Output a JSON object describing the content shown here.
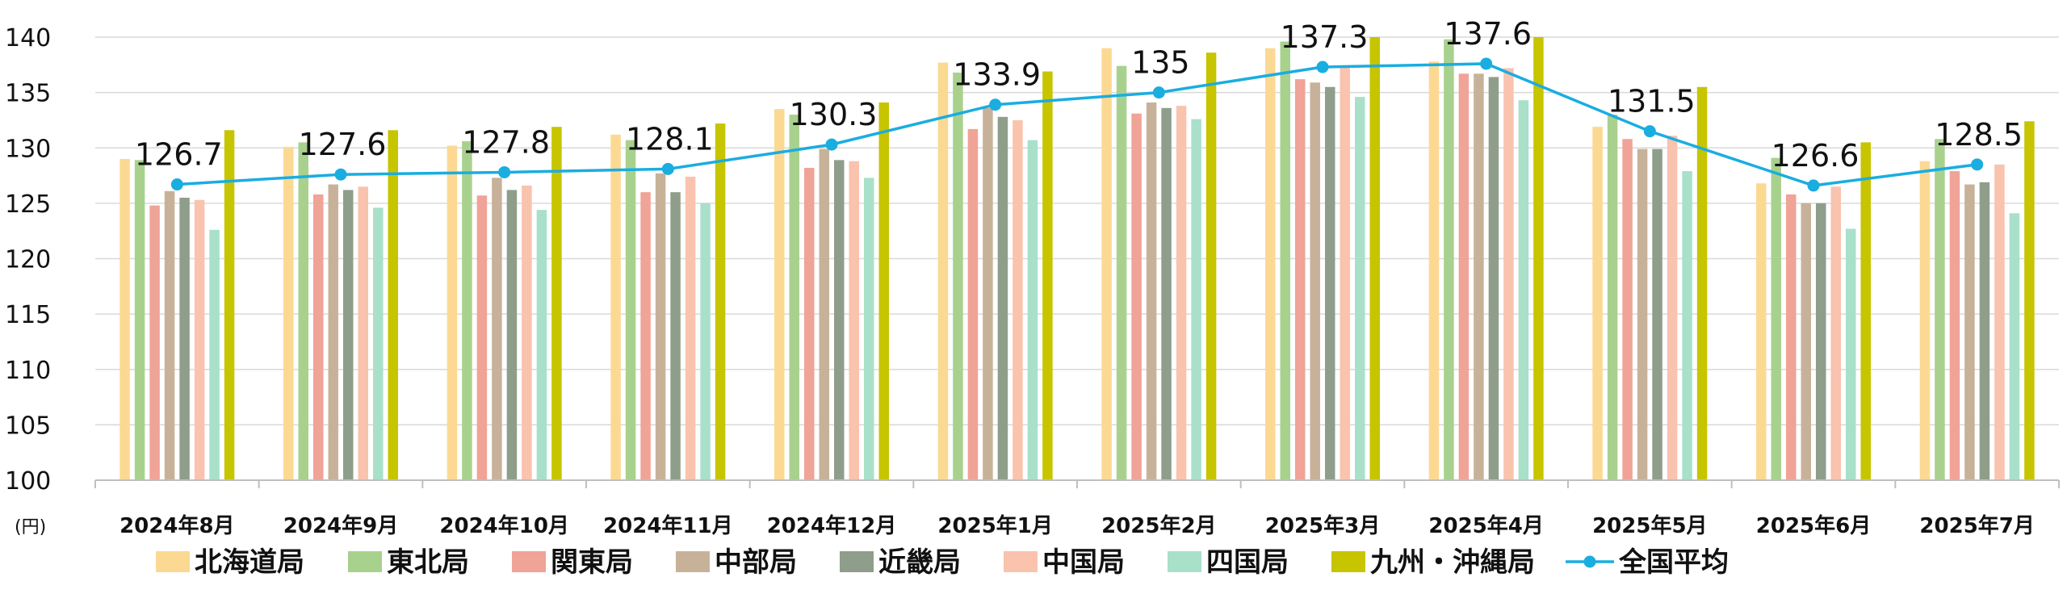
{
  "chart_data": {
    "type": "bar",
    "unit_label": "(円)",
    "ylim": [
      100,
      140
    ],
    "yticks": [
      100,
      105,
      110,
      115,
      120,
      125,
      130,
      135,
      140
    ],
    "grid": true,
    "legend_position": "bottom",
    "categories": [
      "2024年8月",
      "2024年9月",
      "2024年10月",
      "2024年11月",
      "2024年12月",
      "2025年1月",
      "2025年2月",
      "2025年3月",
      "2025年4月",
      "2025年5月",
      "2025年6月",
      "2025年7月"
    ],
    "series": [
      {
        "name": "北海道局",
        "color": "#FCD993",
        "values": [
          129.0,
          130.1,
          130.2,
          131.2,
          133.5,
          137.7,
          139.0,
          139.0,
          137.8,
          131.9,
          126.8,
          128.8
        ]
      },
      {
        "name": "東北局",
        "color": "#A9D18E",
        "values": [
          128.9,
          130.5,
          130.6,
          130.7,
          133.0,
          136.8,
          137.4,
          139.6,
          139.8,
          133.0,
          129.1,
          130.8
        ]
      },
      {
        "name": "関東局",
        "color": "#F0A397",
        "values": [
          124.8,
          125.8,
          125.7,
          126.0,
          128.2,
          131.7,
          133.1,
          136.2,
          136.7,
          130.8,
          125.8,
          127.9
        ]
      },
      {
        "name": "中部局",
        "color": "#C7B299",
        "values": [
          126.1,
          126.7,
          127.3,
          127.7,
          129.9,
          133.6,
          134.1,
          135.9,
          136.7,
          129.9,
          125.0,
          126.7
        ]
      },
      {
        "name": "近畿局",
        "color": "#8F9E8A",
        "values": [
          125.5,
          126.2,
          126.2,
          126.0,
          128.9,
          132.8,
          133.6,
          135.5,
          136.4,
          129.9,
          125.0,
          126.9
        ]
      },
      {
        "name": "中国局",
        "color": "#F9C3AE",
        "values": [
          125.3,
          126.5,
          126.6,
          127.4,
          128.8,
          132.5,
          133.8,
          137.3,
          137.2,
          131.1,
          126.5,
          128.5
        ]
      },
      {
        "name": "四国局",
        "color": "#A9E0CA",
        "values": [
          122.6,
          124.6,
          124.4,
          125.0,
          127.3,
          130.7,
          132.6,
          134.6,
          134.3,
          127.9,
          122.7,
          124.1
        ]
      },
      {
        "name": "九州・沖縄局",
        "color": "#C7C400",
        "values": [
          131.6,
          131.6,
          131.9,
          132.2,
          134.1,
          136.9,
          138.6,
          140.0,
          140.0,
          135.5,
          130.5,
          132.4
        ]
      }
    ],
    "line_series": {
      "name": "全国平均",
      "color": "#1AADE0",
      "values": [
        126.7,
        127.6,
        127.8,
        128.1,
        130.3,
        133.9,
        135,
        137.3,
        137.6,
        131.5,
        126.6,
        128.5
      ],
      "labels": [
        "126.7",
        "127.6",
        "127.8",
        "128.1",
        "130.3",
        "133.9",
        "135",
        "137.3",
        "137.6",
        "131.5",
        "126.6",
        "128.5"
      ]
    }
  }
}
